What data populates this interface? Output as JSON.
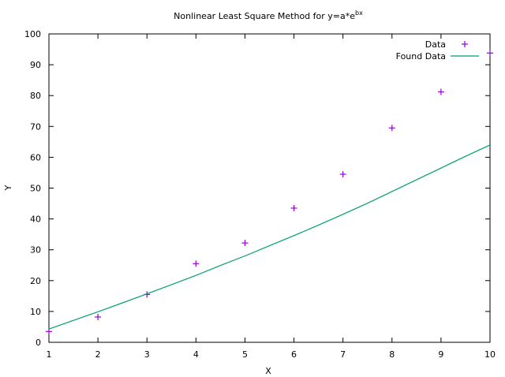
{
  "chart_data": {
    "type": "line",
    "title": {
      "text": "Nonlinear Least Square Method for y=a*e",
      "superscript": "bx"
    },
    "xlabel": "X",
    "ylabel": "Y",
    "xlim": [
      1,
      10
    ],
    "ylim": [
      0,
      100
    ],
    "xticks": [
      1,
      2,
      3,
      4,
      5,
      6,
      7,
      8,
      9,
      10
    ],
    "yticks": [
      0,
      10,
      20,
      30,
      40,
      50,
      60,
      70,
      80,
      90,
      100
    ],
    "grid": false,
    "legend_position": "top-right",
    "series": [
      {
        "name": "Data",
        "kind": "scatter",
        "marker": "plus",
        "color": "#9400d3",
        "x": [
          1,
          2,
          3,
          4,
          5,
          6,
          7,
          8,
          9,
          10
        ],
        "y": [
          3.5,
          8.2,
          15.5,
          25.5,
          32.2,
          43.5,
          54.5,
          69.5,
          81.2,
          93.8
        ]
      },
      {
        "name": "Found Data",
        "kind": "line",
        "color": "#009e73",
        "x": [
          1,
          1.5,
          2,
          2.5,
          3,
          3.5,
          4,
          4.5,
          5,
          5.5,
          6,
          6.5,
          7,
          7.5,
          8,
          8.5,
          9,
          9.5,
          10
        ],
        "y": [
          4.3,
          7.1,
          9.9,
          12.8,
          15.7,
          18.7,
          21.7,
          24.9,
          28.0,
          31.3,
          34.6,
          38.0,
          41.5,
          45.1,
          48.9,
          52.7,
          56.5,
          60.3,
          64.0
        ]
      }
    ]
  }
}
